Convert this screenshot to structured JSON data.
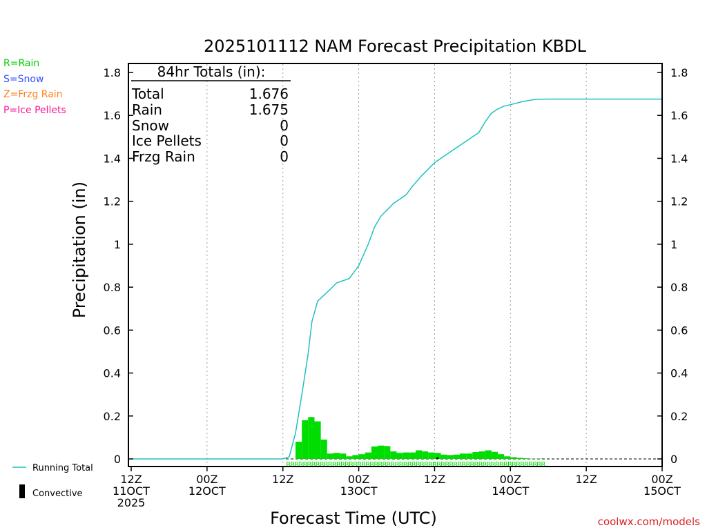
{
  "chart_data": {
    "type": "bar",
    "title": "2025101112 NAM Forecast Precipitation KBDL",
    "xlabel": "Forecast Time (UTC)",
    "ylabel": "Precipitation (in)",
    "ylim": [
      0,
      1.85
    ],
    "xlim_hours": [
      0,
      84
    ],
    "yticks": [
      0,
      0.2,
      0.4,
      0.6,
      0.8,
      1,
      1.2,
      1.4,
      1.6,
      1.8
    ],
    "ytick_labels": [
      "0",
      "0.2",
      "0.4",
      "0.6",
      "0.8",
      "1",
      "1.2",
      "1.4",
      "1.6",
      "1.8"
    ],
    "xticks": [
      {
        "hour": 0,
        "line1": "12Z",
        "line2": "11OCT",
        "line3": "2025"
      },
      {
        "hour": 12,
        "line1": "00Z",
        "line2": "12OCT",
        "line3": ""
      },
      {
        "hour": 24,
        "line1": "12Z",
        "line2": "",
        "line3": ""
      },
      {
        "hour": 36,
        "line1": "00Z",
        "line2": "13OCT",
        "line3": ""
      },
      {
        "hour": 48,
        "line1": "12Z",
        "line2": "",
        "line3": ""
      },
      {
        "hour": 60,
        "line1": "00Z",
        "line2": "14OCT",
        "line3": ""
      },
      {
        "hour": 72,
        "line1": "12Z",
        "line2": "",
        "line3": ""
      },
      {
        "hour": 84,
        "line1": "00Z",
        "line2": "15OCT",
        "line3": ""
      }
    ],
    "totals_box": {
      "header": "84hr Totals (in):",
      "rows": [
        {
          "label": "Total",
          "value": "1.676"
        },
        {
          "label": "Rain",
          "value": "1.675"
        },
        {
          "label": "Snow",
          "value": "0"
        },
        {
          "label": "Ice Pellets",
          "value": "0"
        },
        {
          "label": "Frzg Rain",
          "value": "0"
        }
      ]
    },
    "legend_types": [
      {
        "text": "R=Rain",
        "color": "#00dd00"
      },
      {
        "text": "S=Snow",
        "color": "#3050ff"
      },
      {
        "text": "Z=Frzg Rain",
        "color": "#ff8020"
      },
      {
        "text": "P=Ice Pellets",
        "color": "#ff1493"
      }
    ],
    "legend_bottom": {
      "running_total": "Running Total",
      "convective": "Convective"
    },
    "series": [
      {
        "name": "Hourly precipitation (rain)",
        "color": "#00dd00",
        "bar_width_hours": 1,
        "start_hours": [
          26,
          27,
          28,
          29,
          30,
          31,
          32,
          33,
          34,
          35,
          36,
          37,
          38,
          39,
          40,
          41,
          42,
          43,
          44,
          45,
          46,
          47,
          48,
          49,
          50,
          51,
          52,
          53,
          54,
          55,
          56,
          57,
          58,
          59,
          60,
          61,
          62,
          63,
          64,
          65,
          66,
          67,
          68,
          69,
          70,
          71,
          72,
          73,
          74,
          75,
          76,
          77,
          78,
          79,
          80,
          81,
          82,
          83
        ],
        "values": [
          0.08,
          0.18,
          0.195,
          0.175,
          0.09,
          0.025,
          0.028,
          0.025,
          0.012,
          0.018,
          0.022,
          0.03,
          0.058,
          0.062,
          0.06,
          0.035,
          0.028,
          0.03,
          0.03,
          0.04,
          0.035,
          0.03,
          0.028,
          0.02,
          0.018,
          0.02,
          0.025,
          0.025,
          0.032,
          0.035,
          0.04,
          0.033,
          0.022,
          0.012,
          0.008,
          0.005,
          0.003,
          0.001,
          0.001,
          0,
          0,
          0,
          0,
          0,
          0,
          0,
          0,
          0,
          0,
          0,
          0,
          0,
          0,
          0,
          0,
          0,
          0,
          0
        ]
      },
      {
        "name": "Convective",
        "color": "#000000",
        "start_hours": [
          48.3
        ],
        "values": [
          0.008
        ]
      },
      {
        "name": "Running Total",
        "color": "#20c0c0",
        "x_hours": [
          0,
          24,
          25,
          26,
          27,
          28,
          28.6,
          29.5,
          31.5,
          32.5,
          34.5,
          35,
          36,
          37.5,
          38.5,
          39.5,
          40.5,
          41.5,
          43.5,
          44.5,
          46,
          47,
          48,
          49,
          50.5,
          52,
          53.5,
          55,
          56,
          57,
          58,
          59,
          60,
          62,
          64,
          66,
          68,
          72,
          84
        ],
        "values": [
          0,
          0,
          0.01,
          0.12,
          0.3,
          0.49,
          0.64,
          0.735,
          0.79,
          0.82,
          0.84,
          0.86,
          0.9,
          1.0,
          1.08,
          1.13,
          1.16,
          1.19,
          1.23,
          1.27,
          1.32,
          1.35,
          1.38,
          1.4,
          1.43,
          1.46,
          1.49,
          1.52,
          1.57,
          1.61,
          1.63,
          1.643,
          1.65,
          1.665,
          1.675,
          1.676,
          1.676,
          1.676,
          1.676
        ]
      }
    ],
    "precip_type_marker": {
      "symbol": "R",
      "color": "#00dd00",
      "start_hour": 24.5,
      "end_hour": 65
    }
  },
  "credit": "coolwx.com/models"
}
